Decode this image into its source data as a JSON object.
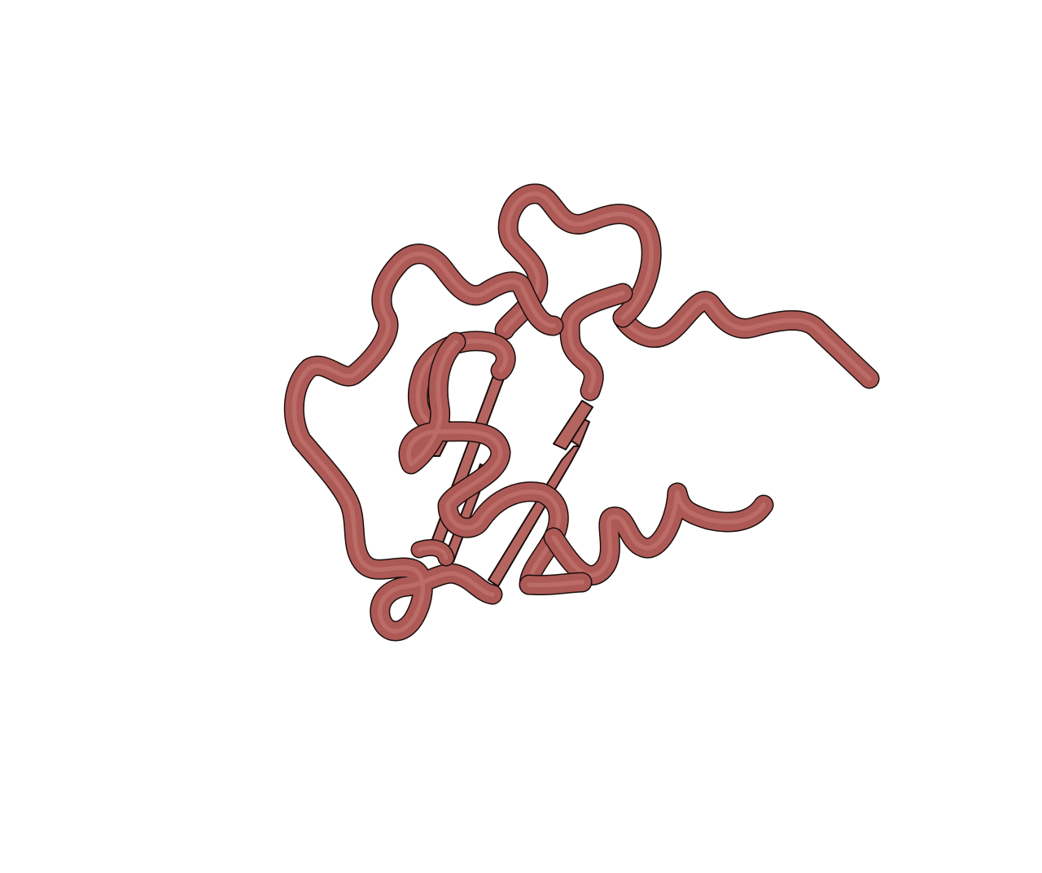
{
  "scene": {
    "subject": "protein-cartoon",
    "representation": [
      "coil-tube",
      "beta-strand-arrows"
    ],
    "background_color": "#ffffff"
  },
  "colors": {
    "tube_fill": "#ad5a56",
    "tube_outline": "#1a0d0c",
    "tube_highlight": "#c97c76",
    "strand_fill": "#b56560"
  },
  "icons": {
    "strand_arrowhead": "triangle-arrowhead"
  }
}
